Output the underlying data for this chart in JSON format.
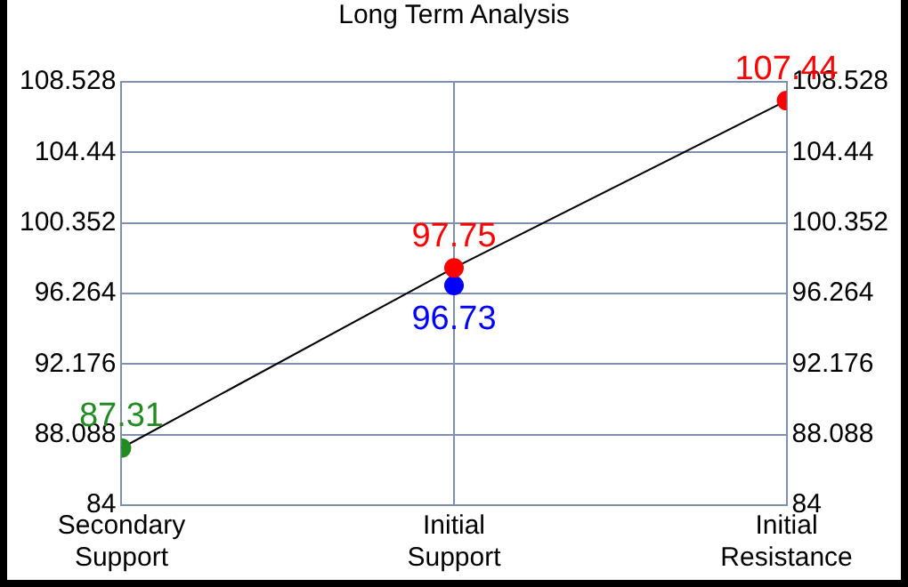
{
  "chart_data": {
    "type": "line",
    "title": "Long Term Analysis",
    "categories": [
      "Secondary Support",
      "Initial Support",
      "Initial Resistance"
    ],
    "series": [
      {
        "color": "#000000",
        "colors": [
          "#228b22",
          "#ff0000",
          "#ff0000"
        ],
        "values": [
          87.31,
          97.75,
          107.44
        ]
      },
      {
        "type": "scatter",
        "color": "#0000ff",
        "x": [
          "Initial Support"
        ],
        "values": [
          96.73
        ]
      }
    ],
    "ylim": [
      84,
      108.528
    ],
    "yticks": [
      84,
      88.088,
      92.176,
      96.264,
      100.352,
      104.44,
      108.528
    ],
    "y2lim": [
      84,
      108.528
    ],
    "y2ticks": [
      84,
      88.088,
      92.176,
      96.264,
      100.352,
      104.44,
      108.528
    ],
    "grid": true,
    "marker": "circle",
    "line_style": "solid",
    "data_labels": true
  }
}
